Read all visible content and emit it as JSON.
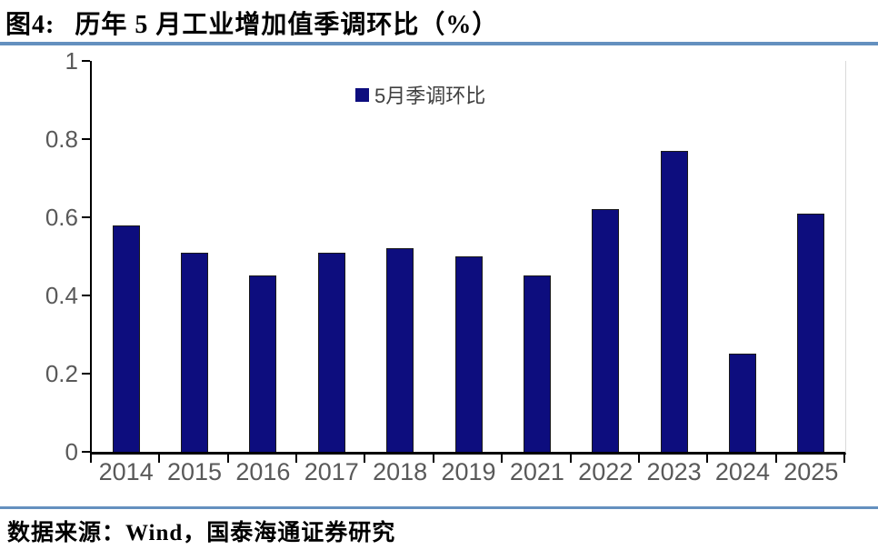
{
  "title": {
    "prefix": "图4:",
    "text": "历年 5 月工业增加值季调环比（%）"
  },
  "legend": {
    "label": "5月季调环比"
  },
  "footer": {
    "source": "数据来源：Wind，国泰海通证券研究"
  },
  "colors": {
    "bar_fill": "#0D0D7E",
    "bar_border": "#1a1a1a",
    "accent_line": "#6490BF",
    "axis_line": "#000000",
    "tick_label": "#595959",
    "legend_text": "#404040",
    "plot_right_border": "#d9d9d9"
  },
  "chart_data": {
    "type": "bar",
    "title": "图4: 历年 5 月工业增加值季调环比（%）",
    "legend_entries": [
      {
        "label": "5月季调环比",
        "color": "#0D0D7E"
      }
    ],
    "legend_position": "top-center",
    "categories": [
      "2014",
      "2015",
      "2016",
      "2017",
      "2018",
      "2019",
      "2021",
      "2022",
      "2023",
      "2024",
      "2025"
    ],
    "values": [
      0.58,
      0.51,
      0.45,
      0.51,
      0.52,
      0.5,
      0.45,
      0.62,
      0.77,
      0.25,
      0.61
    ],
    "xlabel": "",
    "ylabel": "",
    "ylim": [
      0,
      1
    ],
    "yticks": [
      0,
      0.2,
      0.4,
      0.6,
      0.8,
      1
    ],
    "ytick_labels": [
      "0",
      "0.2",
      "0.4",
      "0.6",
      "0.8",
      "1"
    ],
    "grid": false,
    "source": "数据来源：Wind，国泰海通证券研究"
  }
}
